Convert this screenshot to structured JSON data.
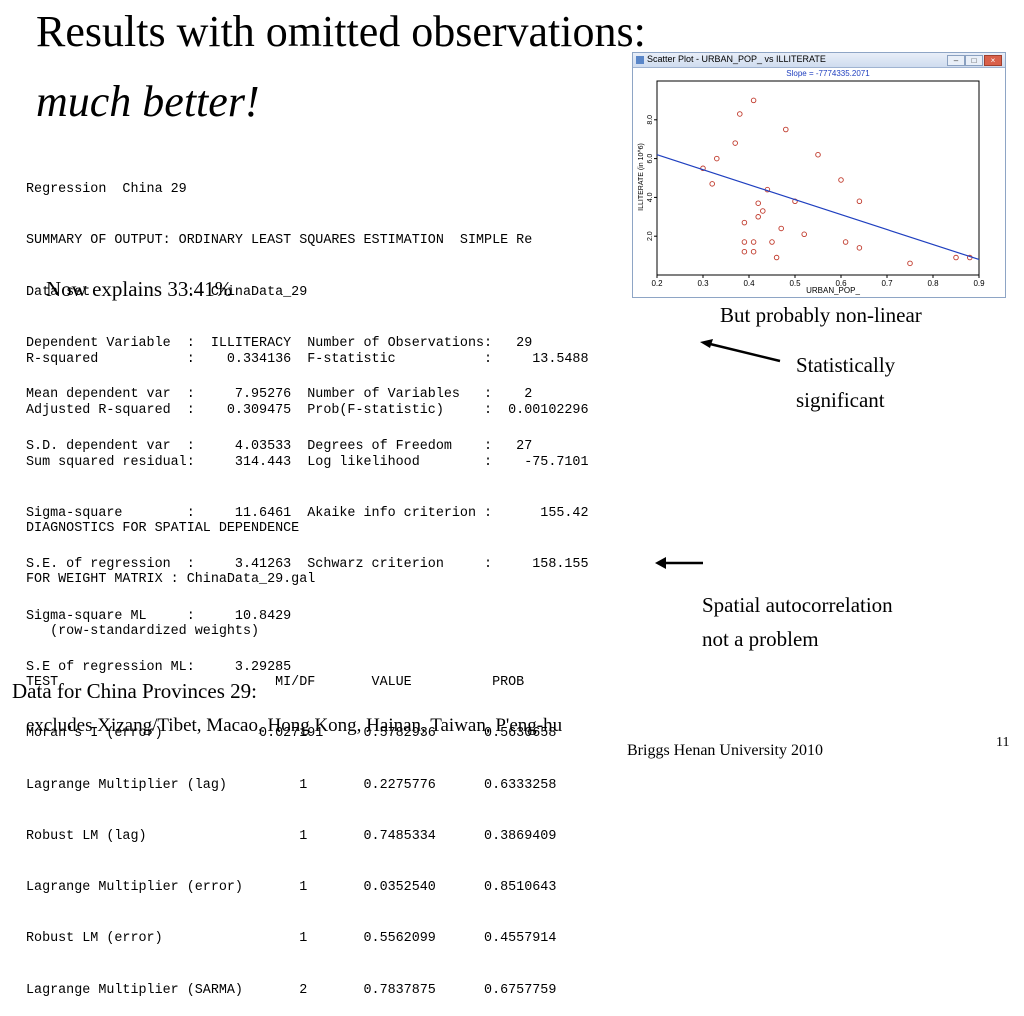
{
  "title": "Results with omitted observations:",
  "subtitle": "much better!",
  "regression_header": [
    "Regression  China 29",
    "SUMMARY OF OUTPUT: ORDINARY LEAST SQUARES ESTIMATION  SIMPLE Re",
    "Data set            :  ChinaData_29",
    "Dependent Variable  :  ILLITERACY  Number of Observations:   29",
    "Mean dependent var  :     7.95276  Number of Variables   :    2",
    "S.D. dependent var  :     4.03533  Degrees of Freedom    :   27"
  ],
  "explains_note": "Now explains 33.41%",
  "fit_stats": [
    "R-squared           :    0.334136  F-statistic           :     13.5488",
    "Adjusted R-squared  :    0.309475  Prob(F-statistic)     :  0.00102296",
    "Sum squared residual:     314.443  Log likelihood        :    -75.7101",
    "Sigma-square        :     11.6461  Akaike info criterion :      155.42",
    "S.E. of regression  :     3.41263  Schwarz criterion     :     158.155",
    "Sigma-square ML     :     10.8429",
    "S.E of regression ML:     3.29285"
  ],
  "diagnostics": [
    "DIAGNOSTICS FOR SPATIAL DEPENDENCE",
    "FOR WEIGHT MATRIX : ChinaData_29.gal",
    "   (row-standardized weights)",
    "TEST                           MI/DF       VALUE          PROB",
    "Moran's I (error)            0.027191     0.5782936      0.5630658",
    "Lagrange Multiplier (lag)         1       0.2275776      0.6333258",
    "Robust LM (lag)                   1       0.7485334      0.3869409",
    "Lagrange Multiplier (error)       1       0.0352540      0.8510643",
    "Robust LM (error)                 1       0.5562099      0.4557914",
    "Lagrange Multiplier (SARMA)       2       0.7837875      0.6757759"
  ],
  "annotations": {
    "nonlinear": "But probably non-linear",
    "significant_line1": "Statistically",
    "significant_line2": "significant",
    "spatial_line1": "Spatial autocorrelation",
    "spatial_line2": "not a problem"
  },
  "data_note": "Data for China Provinces  29:",
  "excludes_note": "excludes Xizang/Tibet, Macao, Hong Kong, Hainan, Taiwan, P'eng-hu",
  "footer": "Briggs  Henan University 2010",
  "slide_number": "11",
  "scatter_window": {
    "title": "Scatter Plot - URBAN_POP_ vs ILLITERATE",
    "slope_label": "Slope = -7774335.2071",
    "icon": "window-app-icon",
    "buttons": [
      "minimize-icon",
      "maximize-icon",
      "close-icon"
    ]
  },
  "chart_data": {
    "type": "scatter",
    "title": "",
    "xlabel": "URBAN_POP_",
    "ylabel": "ILLITERATE (in 10^6)",
    "xlim": [
      0.2,
      0.9
    ],
    "ylim": [
      0.0,
      10.0
    ],
    "xticks": [
      "0.2",
      "0.3",
      "0.4",
      "0.5",
      "0.6",
      "0.7",
      "0.8",
      "0.9"
    ],
    "yticks": [
      "2.0",
      "4.0",
      "6.0",
      "8.0"
    ],
    "ytick_values": [
      2,
      4,
      6,
      8
    ],
    "points": [
      [
        0.41,
        9.0
      ],
      [
        0.38,
        8.3
      ],
      [
        0.48,
        7.5
      ],
      [
        0.37,
        6.8
      ],
      [
        0.55,
        6.2
      ],
      [
        0.33,
        6.0
      ],
      [
        0.3,
        5.5
      ],
      [
        0.32,
        4.7
      ],
      [
        0.6,
        4.9
      ],
      [
        0.44,
        4.4
      ],
      [
        0.42,
        3.7
      ],
      [
        0.5,
        3.8
      ],
      [
        0.64,
        3.8
      ],
      [
        0.43,
        3.3
      ],
      [
        0.42,
        3.0
      ],
      [
        0.39,
        2.7
      ],
      [
        0.47,
        2.4
      ],
      [
        0.52,
        2.1
      ],
      [
        0.39,
        1.7
      ],
      [
        0.41,
        1.7
      ],
      [
        0.45,
        1.7
      ],
      [
        0.61,
        1.7
      ],
      [
        0.64,
        1.4
      ],
      [
        0.39,
        1.2
      ],
      [
        0.41,
        1.2
      ],
      [
        0.46,
        0.9
      ],
      [
        0.75,
        0.6
      ],
      [
        0.85,
        0.9
      ],
      [
        0.88,
        0.9
      ]
    ],
    "regression_line": [
      [
        0.2,
        6.2
      ],
      [
        0.9,
        0.8
      ]
    ],
    "grid": false,
    "colors": {
      "points": "#c0392b",
      "line": "#1f3fbf",
      "frame": "#000000"
    }
  }
}
